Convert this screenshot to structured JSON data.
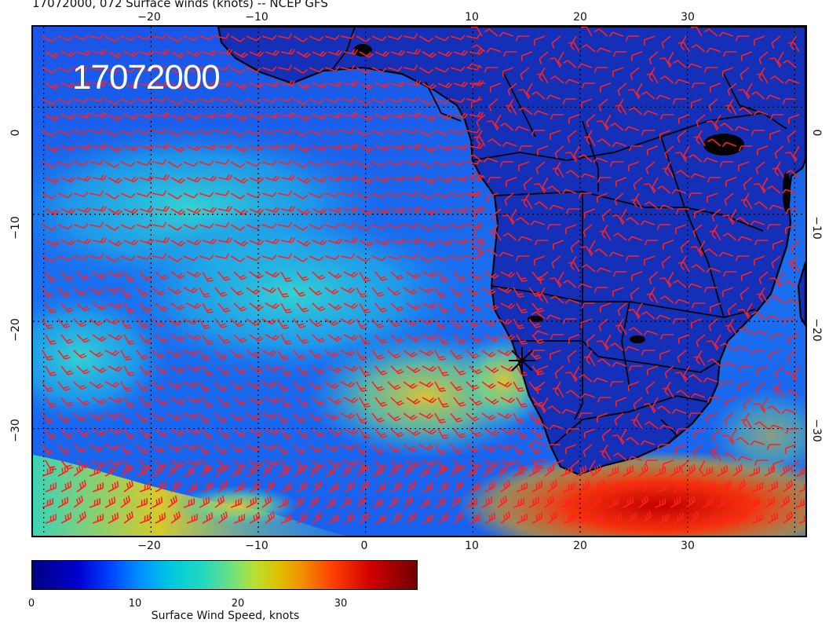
{
  "title": "17072000, 072 Surface winds (knots) -- NCEP GFS",
  "date_stamp": "17072000",
  "lon_ticks": [
    "−20",
    "−10",
    "0",
    "10",
    "20",
    "30"
  ],
  "lat_ticks": [
    "0",
    "−10",
    "−20",
    "−30"
  ],
  "colorbar": {
    "title": "Surface Wind Speed, knots",
    "labels": [
      "0",
      "10",
      "20",
      "30"
    ],
    "min": 0,
    "max": 37
  },
  "colors": {
    "wind_barb": "#ff2020",
    "land_outline": "#000000",
    "graticule": "#000000"
  },
  "map": {
    "lon_range": [
      -31,
      41
    ],
    "lat_range": [
      -40,
      7.5
    ],
    "graticule_step_deg": 10,
    "marker": {
      "label": "station-marker",
      "lon": 14.5,
      "lat": -23
    }
  }
}
